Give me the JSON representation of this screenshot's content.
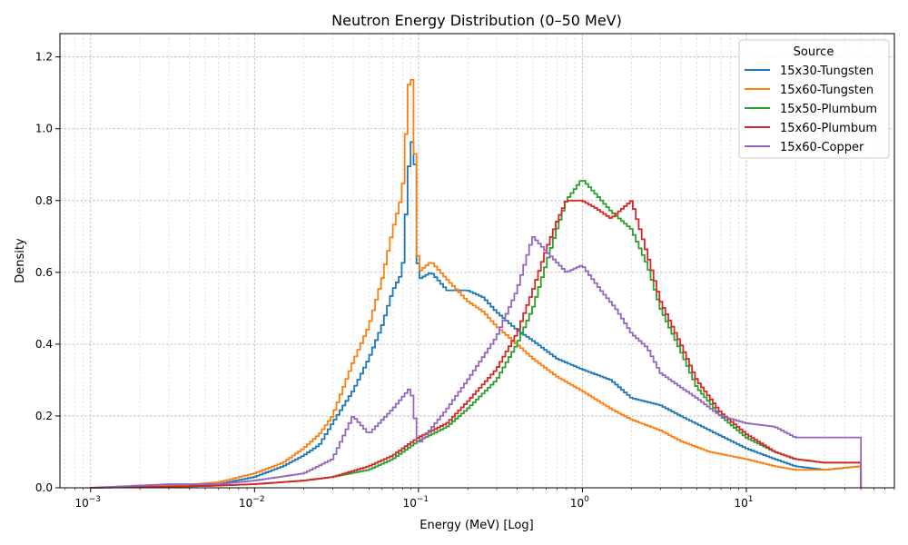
{
  "chart_data": {
    "type": "line",
    "style": "step histogram",
    "title": "Neutron Energy Distribution (0–50 MeV)",
    "xlabel": "Energy (MeV) [Log]",
    "ylabel": "Density",
    "xscale": "log",
    "xlim": [
      0.00065,
      80
    ],
    "ylim": [
      0,
      1.265
    ],
    "xticks": [
      {
        "value": 0.001,
        "base": "10",
        "exp": "−3"
      },
      {
        "value": 0.01,
        "base": "10",
        "exp": "−2"
      },
      {
        "value": 0.1,
        "base": "10",
        "exp": "−1"
      },
      {
        "value": 1,
        "base": "10",
        "exp": "0"
      },
      {
        "value": 10,
        "base": "10",
        "exp": "1"
      }
    ],
    "yticks": [
      "0.0",
      "0.2",
      "0.4",
      "0.6",
      "0.8",
      "1.0",
      "1.2"
    ],
    "grid": true,
    "legend": {
      "title": "Source",
      "position": "top-right"
    },
    "series": [
      {
        "name": "15x30-Tungsten",
        "color": "#1f77b4",
        "x": [
          0.001,
          0.003,
          0.006,
          0.01,
          0.015,
          0.02,
          0.025,
          0.03,
          0.04,
          0.05,
          0.06,
          0.07,
          0.08,
          0.09,
          0.095,
          0.1,
          0.12,
          0.15,
          0.2,
          0.25,
          0.3,
          0.4,
          0.5,
          0.7,
          1.0,
          1.5,
          2.0,
          3.0,
          4.0,
          6.0,
          10,
          15,
          20,
          30,
          50
        ],
        "y": [
          0.0,
          0.005,
          0.01,
          0.03,
          0.06,
          0.09,
          0.12,
          0.18,
          0.27,
          0.36,
          0.45,
          0.55,
          0.6,
          0.98,
          0.92,
          0.58,
          0.6,
          0.55,
          0.55,
          0.53,
          0.49,
          0.44,
          0.41,
          0.36,
          0.33,
          0.3,
          0.25,
          0.23,
          0.2,
          0.16,
          0.11,
          0.08,
          0.06,
          0.05,
          0.06
        ]
      },
      {
        "name": "15x60-Tungsten",
        "color": "#ff7f0e",
        "x": [
          0.001,
          0.003,
          0.006,
          0.01,
          0.015,
          0.02,
          0.025,
          0.03,
          0.035,
          0.04,
          0.05,
          0.06,
          0.07,
          0.08,
          0.09,
          0.095,
          0.1,
          0.12,
          0.15,
          0.2,
          0.25,
          0.3,
          0.4,
          0.5,
          0.7,
          1.0,
          1.5,
          2.0,
          3.0,
          4.0,
          6.0,
          10,
          15,
          20,
          30,
          50
        ],
        "y": [
          0.0,
          0.005,
          0.015,
          0.04,
          0.07,
          0.11,
          0.15,
          0.2,
          0.28,
          0.35,
          0.45,
          0.58,
          0.72,
          0.82,
          1.21,
          0.95,
          0.6,
          0.63,
          0.58,
          0.52,
          0.49,
          0.45,
          0.4,
          0.36,
          0.31,
          0.27,
          0.22,
          0.19,
          0.16,
          0.13,
          0.1,
          0.08,
          0.06,
          0.05,
          0.05,
          0.06
        ]
      },
      {
        "name": "15x50-Plumbum",
        "color": "#2ca02c",
        "x": [
          0.001,
          0.005,
          0.01,
          0.02,
          0.03,
          0.05,
          0.07,
          0.1,
          0.15,
          0.2,
          0.3,
          0.4,
          0.5,
          0.6,
          0.7,
          0.8,
          1.0,
          1.2,
          1.5,
          2.0,
          2.5,
          3.0,
          4.0,
          5.0,
          7.0,
          10,
          15,
          20,
          30,
          50
        ],
        "y": [
          0.0,
          0.005,
          0.01,
          0.02,
          0.03,
          0.05,
          0.08,
          0.13,
          0.17,
          0.22,
          0.3,
          0.4,
          0.5,
          0.62,
          0.72,
          0.8,
          0.86,
          0.82,
          0.77,
          0.72,
          0.62,
          0.5,
          0.38,
          0.28,
          0.2,
          0.14,
          0.1,
          0.08,
          0.07,
          0.07
        ]
      },
      {
        "name": "15x60-Plumbum",
        "color": "#d62728",
        "x": [
          0.001,
          0.005,
          0.01,
          0.02,
          0.03,
          0.05,
          0.07,
          0.1,
          0.15,
          0.2,
          0.3,
          0.4,
          0.5,
          0.6,
          0.7,
          0.8,
          1.0,
          1.2,
          1.5,
          2.0,
          2.5,
          3.0,
          4.0,
          5.0,
          7.0,
          10,
          15,
          20,
          30,
          50
        ],
        "y": [
          0.0,
          0.005,
          0.01,
          0.02,
          0.03,
          0.06,
          0.09,
          0.14,
          0.18,
          0.24,
          0.33,
          0.43,
          0.55,
          0.66,
          0.74,
          0.8,
          0.8,
          0.78,
          0.75,
          0.8,
          0.65,
          0.52,
          0.4,
          0.3,
          0.21,
          0.15,
          0.1,
          0.08,
          0.07,
          0.07
        ]
      },
      {
        "name": "15x60-Copper",
        "color": "#9467bd",
        "x": [
          0.001,
          0.003,
          0.006,
          0.01,
          0.02,
          0.03,
          0.04,
          0.05,
          0.07,
          0.09,
          0.1,
          0.15,
          0.2,
          0.3,
          0.4,
          0.5,
          0.6,
          0.8,
          1.0,
          1.3,
          1.6,
          2.0,
          2.5,
          3.0,
          4.0,
          5.0,
          7.0,
          10,
          15,
          20,
          30,
          50
        ],
        "y": [
          0.0,
          0.01,
          0.01,
          0.02,
          0.04,
          0.08,
          0.2,
          0.15,
          0.22,
          0.28,
          0.12,
          0.22,
          0.3,
          0.42,
          0.55,
          0.7,
          0.66,
          0.6,
          0.62,
          0.55,
          0.5,
          0.43,
          0.39,
          0.32,
          0.28,
          0.25,
          0.2,
          0.18,
          0.17,
          0.14,
          0.14,
          0.14
        ]
      }
    ]
  }
}
